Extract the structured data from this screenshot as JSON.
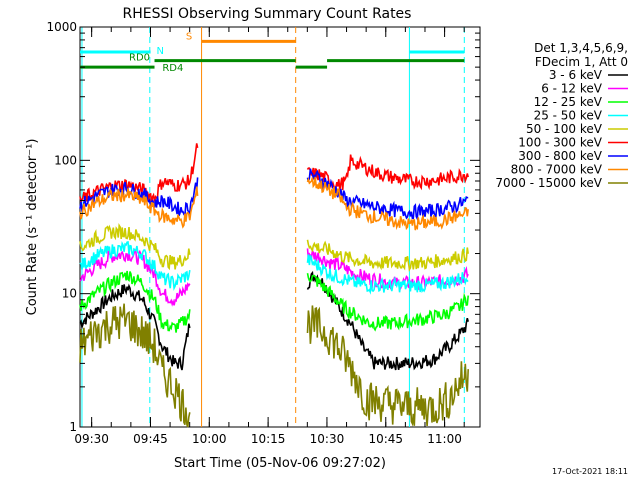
{
  "chart_data": {
    "type": "line",
    "title": "RHESSI Observing Summary Count Rates",
    "xlabel": "Start Time (05-Nov-06 09:27:02)",
    "ylabel": "Count Rate (s⁻¹ detector⁻¹)",
    "yscale": "log",
    "ylim": [
      1,
      1000
    ],
    "y_ticks": [
      1,
      10,
      100,
      1000
    ],
    "y_tick_labels": [
      "1",
      "10",
      "100",
      "1000"
    ],
    "xlim_minutes": [
      0,
      102
    ],
    "x_ticks": [
      {
        "minute": 2.97,
        "label": "09:30"
      },
      {
        "minute": 17.97,
        "label": "09:45"
      },
      {
        "minute": 32.97,
        "label": "10:00"
      },
      {
        "minute": 47.97,
        "label": "10:15"
      },
      {
        "minute": 62.97,
        "label": "10:30"
      },
      {
        "minute": 77.97,
        "label": "10:45"
      },
      {
        "minute": 92.97,
        "label": "11:00"
      }
    ],
    "legend_header": [
      "Det 1,3,4,5,6,9,",
      "FDecim 1, Att 0"
    ],
    "legend_position": "right",
    "series": [
      {
        "name": "3 - 6 keV",
        "color": "#000000",
        "seg1": [
          [
            0,
            6
          ],
          [
            4,
            7.5
          ],
          [
            8,
            9.5
          ],
          [
            12,
            11
          ],
          [
            16,
            9
          ],
          [
            19,
            6
          ],
          [
            21,
            4
          ],
          [
            24,
            3
          ],
          [
            26,
            3
          ],
          [
            28,
            6
          ]
        ],
        "seg2": [
          [
            58,
            12
          ],
          [
            60,
            14
          ],
          [
            63,
            11
          ],
          [
            66,
            8
          ],
          [
            69,
            6
          ],
          [
            72,
            4
          ],
          [
            75,
            3
          ],
          [
            84,
            3
          ],
          [
            90,
            3.2
          ],
          [
            94,
            4
          ],
          [
            97,
            5
          ],
          [
            99,
            6
          ]
        ]
      },
      {
        "name": "6 - 12 keV",
        "color": "#ff00ff",
        "seg1": [
          [
            0,
            13
          ],
          [
            4,
            16
          ],
          [
            8,
            19
          ],
          [
            12,
            20
          ],
          [
            16,
            18
          ],
          [
            19,
            14
          ],
          [
            21,
            10
          ],
          [
            24,
            9
          ],
          [
            26,
            10
          ],
          [
            28,
            12
          ]
        ],
        "seg2": [
          [
            58,
            20
          ],
          [
            61,
            19
          ],
          [
            64,
            17
          ],
          [
            67,
            16
          ],
          [
            70,
            14
          ],
          [
            74,
            13
          ],
          [
            80,
            12
          ],
          [
            88,
            12
          ],
          [
            93,
            12.5
          ],
          [
            97,
            13
          ],
          [
            99,
            14
          ]
        ]
      },
      {
        "name": "12 - 25 keV",
        "color": "#00ff00",
        "seg1": [
          [
            0,
            8
          ],
          [
            4,
            10
          ],
          [
            8,
            12
          ],
          [
            12,
            14
          ],
          [
            16,
            12
          ],
          [
            19,
            9
          ],
          [
            21,
            6
          ],
          [
            24,
            5.5
          ],
          [
            26,
            6
          ],
          [
            28,
            7
          ]
        ],
        "seg2": [
          [
            58,
            14
          ],
          [
            61,
            12
          ],
          [
            64,
            10
          ],
          [
            67,
            8
          ],
          [
            70,
            7
          ],
          [
            74,
            6
          ],
          [
            80,
            6
          ],
          [
            88,
            6.5
          ],
          [
            93,
            7
          ],
          [
            97,
            8
          ],
          [
            99,
            9.5
          ]
        ]
      },
      {
        "name": "25 - 50 keV",
        "color": "#00ffff",
        "seg1": [
          [
            0,
            16
          ],
          [
            4,
            19
          ],
          [
            8,
            21
          ],
          [
            12,
            22
          ],
          [
            16,
            20
          ],
          [
            19,
            16
          ],
          [
            21,
            13
          ],
          [
            24,
            12
          ],
          [
            26,
            13
          ],
          [
            28,
            14
          ]
        ],
        "seg2": [
          [
            58,
            18
          ],
          [
            61,
            16
          ],
          [
            64,
            14
          ],
          [
            67,
            13
          ],
          [
            70,
            12
          ],
          [
            74,
            11.5
          ],
          [
            80,
            11.5
          ],
          [
            88,
            11.5
          ],
          [
            93,
            12
          ],
          [
            97,
            13
          ],
          [
            99,
            14
          ]
        ]
      },
      {
        "name": "50 - 100 keV",
        "color": "#cccc00",
        "seg1": [
          [
            0,
            22
          ],
          [
            4,
            26
          ],
          [
            8,
            29
          ],
          [
            12,
            29
          ],
          [
            16,
            26
          ],
          [
            19,
            22
          ],
          [
            21,
            18
          ],
          [
            24,
            17
          ],
          [
            26,
            18
          ],
          [
            28,
            20
          ]
        ],
        "seg2": [
          [
            58,
            24
          ],
          [
            61,
            22
          ],
          [
            64,
            21
          ],
          [
            67,
            19
          ],
          [
            70,
            18
          ],
          [
            74,
            17
          ],
          [
            80,
            17
          ],
          [
            88,
            17
          ],
          [
            93,
            18
          ],
          [
            97,
            19
          ],
          [
            99,
            20
          ]
        ]
      },
      {
        "name": "100 - 300 keV",
        "color": "#ff0000",
        "seg1": [
          [
            0,
            50
          ],
          [
            4,
            58
          ],
          [
            8,
            64
          ],
          [
            12,
            66
          ],
          [
            16,
            60
          ],
          [
            19,
            52
          ],
          [
            21,
            70
          ],
          [
            24,
            65
          ],
          [
            26,
            66
          ],
          [
            28,
            70
          ],
          [
            30,
            130
          ]
        ],
        "seg2": [
          [
            58,
            80
          ],
          [
            61,
            78
          ],
          [
            64,
            70
          ],
          [
            66,
            65
          ],
          [
            68,
            70
          ],
          [
            69,
            100
          ],
          [
            72,
            90
          ],
          [
            76,
            80
          ],
          [
            80,
            74
          ],
          [
            84,
            70
          ],
          [
            88,
            70
          ],
          [
            92,
            72
          ],
          [
            96,
            76
          ],
          [
            99,
            80
          ]
        ]
      },
      {
        "name": "300 - 800 keV",
        "color": "#0000ff",
        "seg1": [
          [
            0,
            46
          ],
          [
            4,
            54
          ],
          [
            8,
            60
          ],
          [
            12,
            62
          ],
          [
            16,
            56
          ],
          [
            19,
            48
          ],
          [
            21,
            50
          ],
          [
            24,
            45
          ],
          [
            26,
            42
          ],
          [
            28,
            45
          ],
          [
            30,
            70
          ]
        ],
        "seg2": [
          [
            58,
            78
          ],
          [
            61,
            74
          ],
          [
            64,
            64
          ],
          [
            66,
            58
          ],
          [
            68,
            50
          ],
          [
            72,
            47
          ],
          [
            76,
            44
          ],
          [
            80,
            42
          ],
          [
            84,
            41
          ],
          [
            88,
            41
          ],
          [
            92,
            43
          ],
          [
            96,
            46
          ],
          [
            99,
            50
          ]
        ]
      },
      {
        "name": "800 - 7000 keV",
        "color": "#ff8800",
        "seg1": [
          [
            0,
            40
          ],
          [
            4,
            48
          ],
          [
            8,
            54
          ],
          [
            12,
            55
          ],
          [
            16,
            50
          ],
          [
            19,
            42
          ],
          [
            21,
            38
          ],
          [
            24,
            36
          ],
          [
            26,
            35
          ],
          [
            28,
            38
          ],
          [
            30,
            60
          ]
        ],
        "seg2": [
          [
            58,
            72
          ],
          [
            61,
            66
          ],
          [
            64,
            58
          ],
          [
            66,
            54
          ],
          [
            68,
            44
          ],
          [
            72,
            40
          ],
          [
            76,
            37
          ],
          [
            80,
            35
          ],
          [
            84,
            33
          ],
          [
            88,
            34
          ],
          [
            92,
            35
          ],
          [
            96,
            38
          ],
          [
            99,
            40
          ]
        ]
      },
      {
        "name": "7000 - 15000 keV",
        "color": "#808000",
        "seg1": [
          [
            0,
            4
          ],
          [
            4,
            5.2
          ],
          [
            8,
            6
          ],
          [
            12,
            6.3
          ],
          [
            16,
            5
          ],
          [
            19,
            4
          ],
          [
            21,
            2.5
          ],
          [
            24,
            2
          ],
          [
            26,
            1.5
          ],
          [
            28,
            1.3
          ]
        ],
        "seg2": [
          [
            58,
            6
          ],
          [
            61,
            5.5
          ],
          [
            64,
            4.8
          ],
          [
            67,
            3.5
          ],
          [
            70,
            2.5
          ],
          [
            73,
            1.6
          ],
          [
            78,
            1.5
          ],
          [
            84,
            1.4
          ],
          [
            90,
            1.4
          ],
          [
            94,
            1.6
          ],
          [
            97,
            2.2
          ],
          [
            99,
            2.6
          ]
        ]
      }
    ],
    "status_bars": [
      {
        "label": "N",
        "color": "#00ffff",
        "level": 650,
        "spans": [
          [
            0,
            18
          ],
          [
            84,
            98
          ]
        ]
      },
      {
        "label": "S",
        "color": "#ff8800",
        "level": 780,
        "spans": [
          [
            31,
            55
          ]
        ]
      },
      {
        "label": "RD0",
        "color": "#008800",
        "level": 560,
        "spans": [
          [
            19,
            55
          ],
          [
            63,
            98
          ]
        ]
      },
      {
        "label": "RD4",
        "color": "#008800",
        "level": 500,
        "spans": [
          [
            0,
            19
          ],
          [
            55,
            63
          ]
        ]
      }
    ],
    "vertical_markers": [
      {
        "minute": 0.5,
        "color": "#00ffff",
        "style": "solid"
      },
      {
        "minute": 17.8,
        "color": "#00ffff",
        "style": "dashed"
      },
      {
        "minute": 31,
        "color": "#ff8800",
        "style": "solid"
      },
      {
        "minute": 55,
        "color": "#ff8800",
        "style": "dashed"
      },
      {
        "minute": 84,
        "color": "#00ffff",
        "style": "solid"
      },
      {
        "minute": 98,
        "color": "#00ffff",
        "style": "dashed"
      }
    ]
  },
  "footer_timestamp": "17-Oct-2021 18:11"
}
